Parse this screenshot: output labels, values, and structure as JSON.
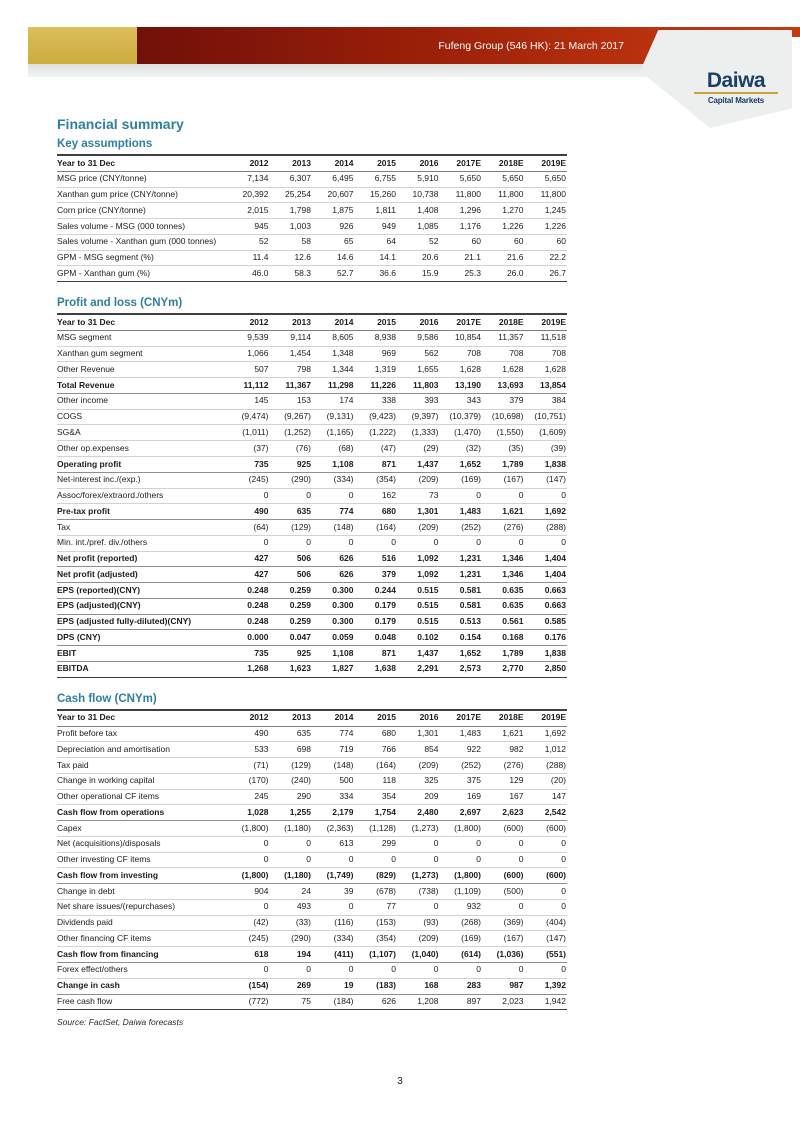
{
  "header": {
    "banner_text": "Fufeng Group (546 HK): 21 March 2017",
    "logo_name": "Daiwa",
    "logo_subtitle": "Capital Markets"
  },
  "page": {
    "title": "Financial summary",
    "source_note": "Source: FactSet, Daiwa forecasts",
    "page_number": "3"
  },
  "colors": {
    "accent_teal": "#2e7f9f",
    "banner_red_dark": "#71100a",
    "banner_red_bright": "#c43a10",
    "gold_block": "#d5b54e",
    "logo_navy": "#1c3e6b",
    "logo_gold_rule": "#c8a63c"
  },
  "row_header_label": "Year to 31 Dec",
  "years": [
    "2012",
    "2013",
    "2014",
    "2015",
    "2016",
    "2017E",
    "2018E",
    "2019E"
  ],
  "tables": [
    {
      "title": "Key assumptions",
      "rows": [
        {
          "label": "MSG price (CNY/tonne)",
          "bold": false,
          "values": [
            "7,134",
            "6,307",
            "6,495",
            "6,755",
            "5,910",
            "5,650",
            "5,650",
            "5,650"
          ]
        },
        {
          "label": "Xanthan gum price (CNY/tonne)",
          "bold": false,
          "values": [
            "20,392",
            "25,254",
            "20,607",
            "15,260",
            "10,738",
            "11,800",
            "11,800",
            "11,800"
          ]
        },
        {
          "label": "Corn price (CNY/tonne)",
          "bold": false,
          "values": [
            "2,015",
            "1,798",
            "1,875",
            "1,811",
            "1,408",
            "1,296",
            "1,270",
            "1,245"
          ]
        },
        {
          "label": "Sales volume - MSG (000 tonnes)",
          "bold": false,
          "values": [
            "945",
            "1,003",
            "926",
            "949",
            "1,085",
            "1,176",
            "1,226",
            "1,226"
          ]
        },
        {
          "label": "Sales volume - Xanthan gum (000 tonnes)",
          "bold": false,
          "values": [
            "52",
            "58",
            "65",
            "64",
            "52",
            "60",
            "60",
            "60"
          ]
        },
        {
          "label": "GPM - MSG segment (%)",
          "bold": false,
          "values": [
            "11.4",
            "12.6",
            "14.6",
            "14.1",
            "20.6",
            "21.1",
            "21.6",
            "22.2"
          ]
        },
        {
          "label": "GPM - Xanthan gum (%)",
          "bold": false,
          "values": [
            "46.0",
            "58.3",
            "52.7",
            "36.6",
            "15.9",
            "25.3",
            "26.0",
            "26.7"
          ]
        }
      ]
    },
    {
      "title": "Profit and loss (CNYm)",
      "rows": [
        {
          "label": "MSG segment",
          "bold": false,
          "values": [
            "9,539",
            "9,114",
            "8,605",
            "8,938",
            "9,586",
            "10,854",
            "11,357",
            "11,518"
          ]
        },
        {
          "label": "Xanthan gum segment",
          "bold": false,
          "values": [
            "1,066",
            "1,454",
            "1,348",
            "969",
            "562",
            "708",
            "708",
            "708"
          ]
        },
        {
          "label": "Other Revenue",
          "bold": false,
          "values": [
            "507",
            "798",
            "1,344",
            "1,319",
            "1,655",
            "1,628",
            "1,628",
            "1,628"
          ]
        },
        {
          "label": "Total Revenue",
          "bold": true,
          "values": [
            "11,112",
            "11,367",
            "11,298",
            "11,226",
            "11,803",
            "13,190",
            "13,693",
            "13,854"
          ]
        },
        {
          "label": "Other income",
          "bold": false,
          "values": [
            "145",
            "153",
            "174",
            "338",
            "393",
            "343",
            "379",
            "384"
          ]
        },
        {
          "label": "COGS",
          "bold": false,
          "values": [
            "(9,474)",
            "(9,267)",
            "(9,131)",
            "(9,423)",
            "(9,397)",
            "(10,379)",
            "(10,698)",
            "(10,751)"
          ]
        },
        {
          "label": "SG&A",
          "bold": false,
          "values": [
            "(1,011)",
            "(1,252)",
            "(1,165)",
            "(1,222)",
            "(1,333)",
            "(1,470)",
            "(1,550)",
            "(1,609)"
          ]
        },
        {
          "label": "Other op.expenses",
          "bold": false,
          "values": [
            "(37)",
            "(76)",
            "(68)",
            "(47)",
            "(29)",
            "(32)",
            "(35)",
            "(39)"
          ]
        },
        {
          "label": "Operating profit",
          "bold": true,
          "values": [
            "735",
            "925",
            "1,108",
            "871",
            "1,437",
            "1,652",
            "1,789",
            "1,838"
          ]
        },
        {
          "label": "Net-interest inc./(exp.)",
          "bold": false,
          "values": [
            "(245)",
            "(290)",
            "(334)",
            "(354)",
            "(209)",
            "(169)",
            "(167)",
            "(147)"
          ]
        },
        {
          "label": "Assoc/forex/extraord./others",
          "bold": false,
          "values": [
            "0",
            "0",
            "0",
            "162",
            "73",
            "0",
            "0",
            "0"
          ]
        },
        {
          "label": "Pre-tax profit",
          "bold": true,
          "values": [
            "490",
            "635",
            "774",
            "680",
            "1,301",
            "1,483",
            "1,621",
            "1,692"
          ]
        },
        {
          "label": "Tax",
          "bold": false,
          "values": [
            "(64)",
            "(129)",
            "(148)",
            "(164)",
            "(209)",
            "(252)",
            "(276)",
            "(288)"
          ]
        },
        {
          "label": "Min. int./pref. div./others",
          "bold": false,
          "values": [
            "0",
            "0",
            "0",
            "0",
            "0",
            "0",
            "0",
            "0"
          ]
        },
        {
          "label": "Net profit (reported)",
          "bold": true,
          "values": [
            "427",
            "506",
            "626",
            "516",
            "1,092",
            "1,231",
            "1,346",
            "1,404"
          ]
        },
        {
          "label": "Net profit (adjusted)",
          "bold": true,
          "values": [
            "427",
            "506",
            "626",
            "379",
            "1,092",
            "1,231",
            "1,346",
            "1,404"
          ]
        },
        {
          "label": "EPS (reported)(CNY)",
          "bold": true,
          "values": [
            "0.248",
            "0.259",
            "0.300",
            "0.244",
            "0.515",
            "0.581",
            "0.635",
            "0.663"
          ]
        },
        {
          "label": "EPS (adjusted)(CNY)",
          "bold": true,
          "values": [
            "0.248",
            "0.259",
            "0.300",
            "0.179",
            "0.515",
            "0.581",
            "0.635",
            "0.663"
          ]
        },
        {
          "label": "EPS (adjusted fully-diluted)(CNY)",
          "bold": true,
          "values": [
            "0.248",
            "0.259",
            "0.300",
            "0.179",
            "0.515",
            "0.513",
            "0.561",
            "0.585"
          ]
        },
        {
          "label": "DPS (CNY)",
          "bold": true,
          "values": [
            "0.000",
            "0.047",
            "0.059",
            "0.048",
            "0.102",
            "0.154",
            "0.168",
            "0.176"
          ]
        },
        {
          "label": "EBIT",
          "bold": true,
          "values": [
            "735",
            "925",
            "1,108",
            "871",
            "1,437",
            "1,652",
            "1,789",
            "1,838"
          ]
        },
        {
          "label": "EBITDA",
          "bold": true,
          "values": [
            "1,268",
            "1,623",
            "1,827",
            "1,638",
            "2,291",
            "2,573",
            "2,770",
            "2,850"
          ]
        }
      ]
    },
    {
      "title": "Cash flow (CNYm)",
      "rows": [
        {
          "label": "Profit before tax",
          "bold": false,
          "values": [
            "490",
            "635",
            "774",
            "680",
            "1,301",
            "1,483",
            "1,621",
            "1,692"
          ]
        },
        {
          "label": "Depreciation and amortisation",
          "bold": false,
          "values": [
            "533",
            "698",
            "719",
            "766",
            "854",
            "922",
            "982",
            "1,012"
          ]
        },
        {
          "label": "Tax paid",
          "bold": false,
          "values": [
            "(71)",
            "(129)",
            "(148)",
            "(164)",
            "(209)",
            "(252)",
            "(276)",
            "(288)"
          ]
        },
        {
          "label": "Change in working capital",
          "bold": false,
          "values": [
            "(170)",
            "(240)",
            "500",
            "118",
            "325",
            "375",
            "129",
            "(20)"
          ]
        },
        {
          "label": "Other operational CF items",
          "bold": false,
          "values": [
            "245",
            "290",
            "334",
            "354",
            "209",
            "169",
            "167",
            "147"
          ]
        },
        {
          "label": "Cash flow from operations",
          "bold": true,
          "values": [
            "1,028",
            "1,255",
            "2,179",
            "1,754",
            "2,480",
            "2,697",
            "2,623",
            "2,542"
          ]
        },
        {
          "label": "Capex",
          "bold": false,
          "values": [
            "(1,800)",
            "(1,180)",
            "(2,363)",
            "(1,128)",
            "(1,273)",
            "(1,800)",
            "(600)",
            "(600)"
          ]
        },
        {
          "label": "Net (acquisitions)/disposals",
          "bold": false,
          "values": [
            "0",
            "0",
            "613",
            "299",
            "0",
            "0",
            "0",
            "0"
          ]
        },
        {
          "label": "Other investing CF items",
          "bold": false,
          "values": [
            "0",
            "0",
            "0",
            "0",
            "0",
            "0",
            "0",
            "0"
          ]
        },
        {
          "label": "Cash flow from investing",
          "bold": true,
          "values": [
            "(1,800)",
            "(1,180)",
            "(1,749)",
            "(829)",
            "(1,273)",
            "(1,800)",
            "(600)",
            "(600)"
          ]
        },
        {
          "label": "Change in debt",
          "bold": false,
          "values": [
            "904",
            "24",
            "39",
            "(678)",
            "(738)",
            "(1,109)",
            "(500)",
            "0"
          ]
        },
        {
          "label": "Net share issues/(repurchases)",
          "bold": false,
          "values": [
            "0",
            "493",
            "0",
            "77",
            "0",
            "932",
            "0",
            "0"
          ]
        },
        {
          "label": "Dividends paid",
          "bold": false,
          "values": [
            "(42)",
            "(33)",
            "(116)",
            "(153)",
            "(93)",
            "(268)",
            "(369)",
            "(404)"
          ]
        },
        {
          "label": "Other financing CF items",
          "bold": false,
          "values": [
            "(245)",
            "(290)",
            "(334)",
            "(354)",
            "(209)",
            "(169)",
            "(167)",
            "(147)"
          ]
        },
        {
          "label": "Cash flow from financing",
          "bold": true,
          "values": [
            "618",
            "194",
            "(411)",
            "(1,107)",
            "(1,040)",
            "(614)",
            "(1,036)",
            "(551)"
          ]
        },
        {
          "label": "Forex effect/others",
          "bold": false,
          "values": [
            "0",
            "0",
            "0",
            "0",
            "0",
            "0",
            "0",
            "0"
          ]
        },
        {
          "label": "Change in cash",
          "bold": true,
          "values": [
            "(154)",
            "269",
            "19",
            "(183)",
            "168",
            "283",
            "987",
            "1,392"
          ]
        },
        {
          "label": "Free cash flow",
          "bold": false,
          "values": [
            "(772)",
            "75",
            "(184)",
            "626",
            "1,208",
            "897",
            "2,023",
            "1,942"
          ]
        }
      ]
    }
  ]
}
